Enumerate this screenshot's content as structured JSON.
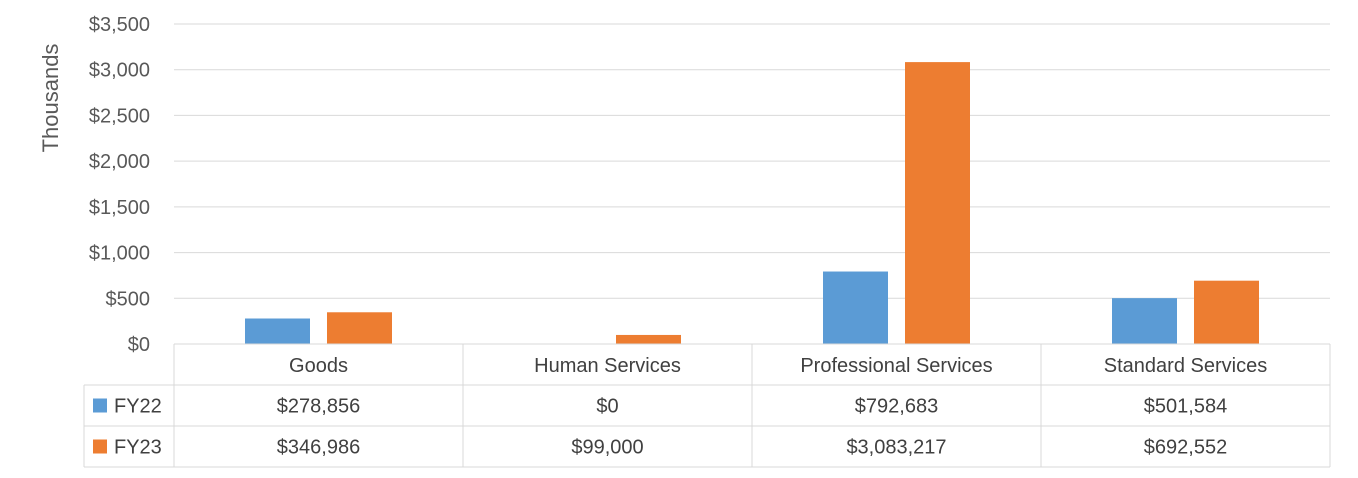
{
  "chart_data": {
    "type": "bar",
    "ylabel": "Thousands",
    "ylim": [
      0,
      3500
    ],
    "yticks": [
      0,
      500,
      1000,
      1500,
      2000,
      2500,
      3000,
      3500
    ],
    "ytick_labels": [
      "$0",
      "$500",
      "$1,000",
      "$1,500",
      "$2,000",
      "$2,500",
      "$3,000",
      "$3,500"
    ],
    "categories": [
      "Goods",
      "Human Services",
      "Professional Services",
      "Standard Services"
    ],
    "grid": true,
    "legend": "data-table",
    "series": [
      {
        "name": "FY22",
        "color": "#5b9bd5",
        "values": [
          278.856,
          0,
          792.683,
          501.584
        ],
        "labels": [
          "$278,856",
          "$0",
          "$792,683",
          "$501,584"
        ]
      },
      {
        "name": "FY23",
        "color": "#ed7d31",
        "values": [
          346.986,
          99.0,
          3083.217,
          692.552
        ],
        "labels": [
          "$346,986",
          "$99,000",
          "$3,083,217",
          "$692,552"
        ]
      }
    ]
  }
}
